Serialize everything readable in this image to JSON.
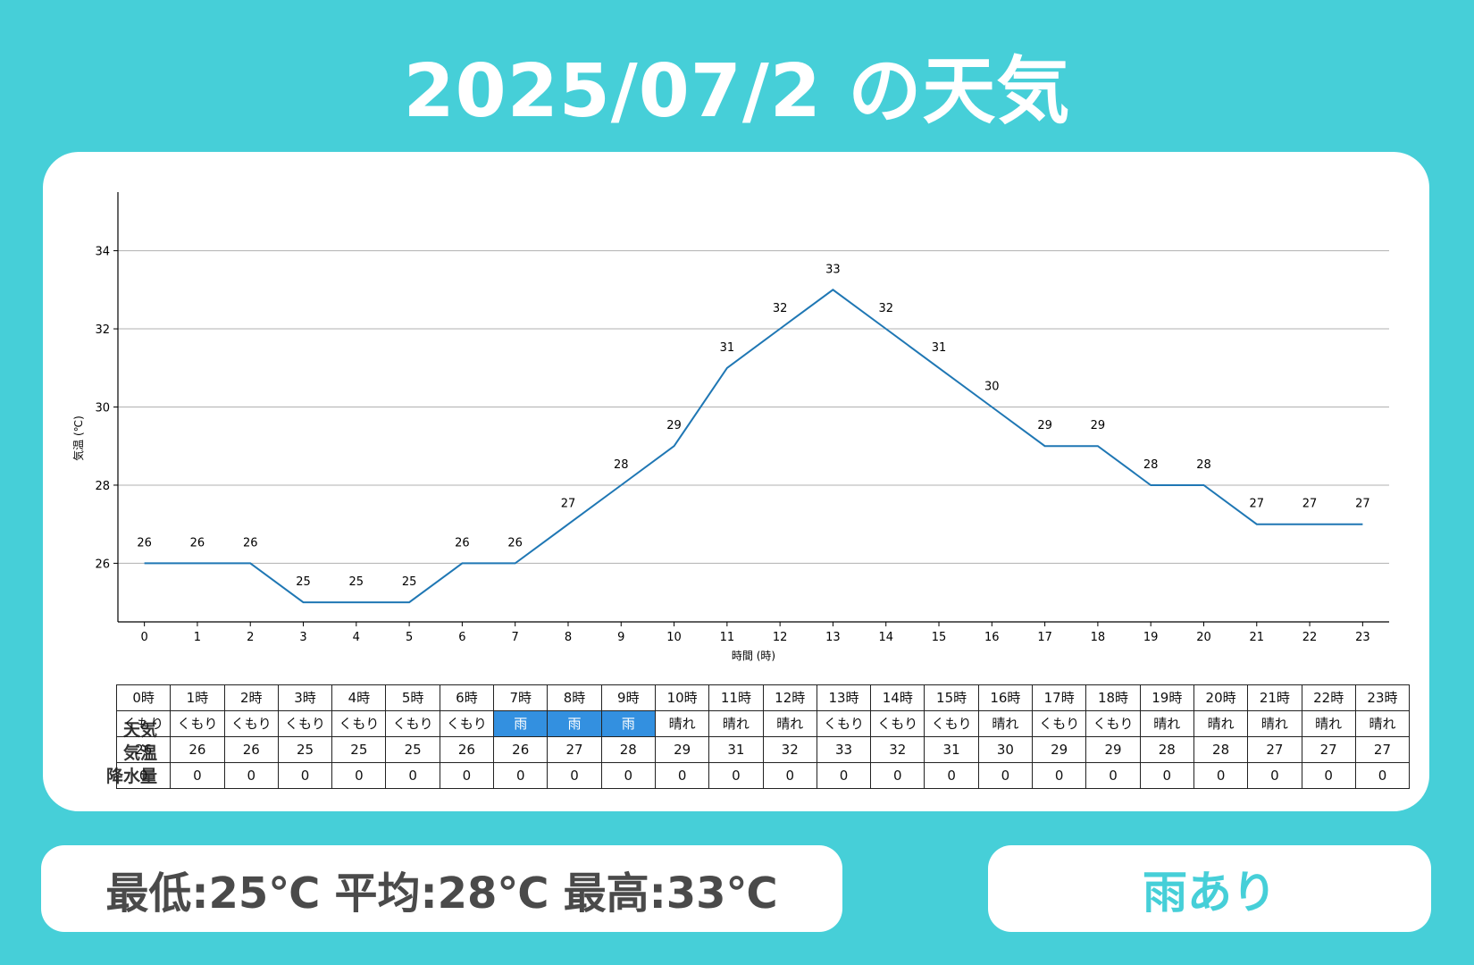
{
  "title": "2025/07/2 の天気",
  "stats": {
    "min": "最低:25℃",
    "avg": "平均:28℃",
    "max": "最高:33℃"
  },
  "rain_status": "雨あり",
  "row_labels": [
    "天気",
    "気温",
    "降水量"
  ],
  "colors": {
    "background": "#46cfd8",
    "line": "#1f77b4",
    "rain_cell": "#3390e0",
    "grid": "#b0b0b0"
  },
  "table": {
    "hours": [
      "0時",
      "1時",
      "2時",
      "3時",
      "4時",
      "5時",
      "6時",
      "7時",
      "8時",
      "9時",
      "10時",
      "11時",
      "12時",
      "13時",
      "14時",
      "15時",
      "16時",
      "17時",
      "18時",
      "19時",
      "20時",
      "21時",
      "22時",
      "23時"
    ],
    "weather": [
      "くもり",
      "くもり",
      "くもり",
      "くもり",
      "くもり",
      "くもり",
      "くもり",
      "雨",
      "雨",
      "雨",
      "晴れ",
      "晴れ",
      "晴れ",
      "くもり",
      "くもり",
      "くもり",
      "晴れ",
      "くもり",
      "くもり",
      "晴れ",
      "晴れ",
      "晴れ",
      "晴れ",
      "晴れ"
    ],
    "temp": [
      "26",
      "26",
      "26",
      "25",
      "25",
      "25",
      "26",
      "26",
      "27",
      "28",
      "29",
      "31",
      "32",
      "33",
      "32",
      "31",
      "30",
      "29",
      "29",
      "28",
      "28",
      "27",
      "27",
      "27"
    ],
    "precip": [
      "0",
      "0",
      "0",
      "0",
      "0",
      "0",
      "0",
      "0",
      "0",
      "0",
      "0",
      "0",
      "0",
      "0",
      "0",
      "0",
      "0",
      "0",
      "0",
      "0",
      "0",
      "0",
      "0",
      "0"
    ]
  },
  "chart_data": {
    "type": "line",
    "x": [
      0,
      1,
      2,
      3,
      4,
      5,
      6,
      7,
      8,
      9,
      10,
      11,
      12,
      13,
      14,
      15,
      16,
      17,
      18,
      19,
      20,
      21,
      22,
      23
    ],
    "values": [
      26,
      26,
      26,
      25,
      25,
      25,
      26,
      26,
      27,
      28,
      29,
      31,
      32,
      33,
      32,
      31,
      30,
      29,
      29,
      28,
      28,
      27,
      27,
      27
    ],
    "xlabel": "時間 (時)",
    "ylabel": "気温 (℃)",
    "yticks": [
      26,
      28,
      30,
      32,
      34
    ],
    "ylim": [
      24.5,
      35.5
    ],
    "xlim": [
      -0.5,
      23.5
    ],
    "grid": "horizontal",
    "data_labels": true
  }
}
